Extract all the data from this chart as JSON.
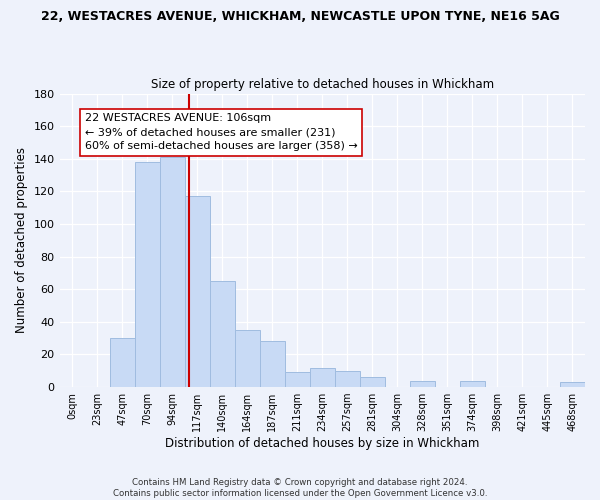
{
  "title_line1": "22, WESTACRES AVENUE, WHICKHAM, NEWCASTLE UPON TYNE, NE16 5AG",
  "title_line2": "Size of property relative to detached houses in Whickham",
  "xlabel": "Distribution of detached houses by size in Whickham",
  "ylabel": "Number of detached properties",
  "bar_labels": [
    "0sqm",
    "23sqm",
    "47sqm",
    "70sqm",
    "94sqm",
    "117sqm",
    "140sqm",
    "164sqm",
    "187sqm",
    "211sqm",
    "234sqm",
    "257sqm",
    "281sqm",
    "304sqm",
    "328sqm",
    "351sqm",
    "374sqm",
    "398sqm",
    "421sqm",
    "445sqm",
    "468sqm"
  ],
  "bar_heights": [
    0,
    0,
    30,
    138,
    141,
    117,
    65,
    35,
    28,
    9,
    12,
    10,
    6,
    0,
    4,
    0,
    4,
    0,
    0,
    0,
    3
  ],
  "bar_color": "#c8daf5",
  "bar_edge_color": "#a0bce0",
  "ylim": [
    0,
    180
  ],
  "yticks": [
    0,
    20,
    40,
    60,
    80,
    100,
    120,
    140,
    160,
    180
  ],
  "vline_x": 4.67,
  "vline_color": "#cc0000",
  "annotation_text": "22 WESTACRES AVENUE: 106sqm\n← 39% of detached houses are smaller (231)\n60% of semi-detached houses are larger (358) →",
  "annotation_box_color": "#ffffff",
  "annotation_box_edge": "#cc0000",
  "footer_text": "Contains HM Land Registry data © Crown copyright and database right 2024.\nContains public sector information licensed under the Open Government Licence v3.0.",
  "background_color": "#eef2fb"
}
